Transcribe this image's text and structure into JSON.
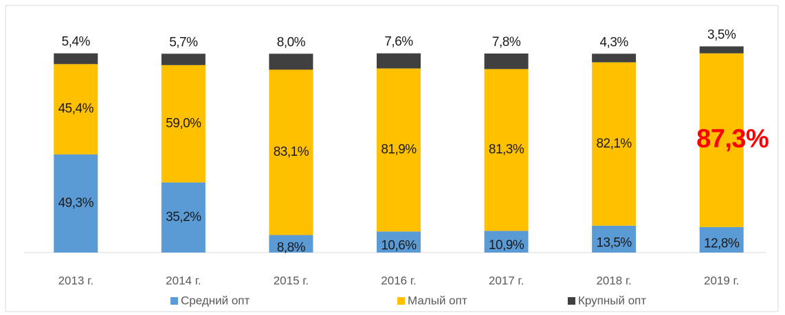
{
  "chart_data": {
    "type": "stacked_bar",
    "categories": [
      "2013 г.",
      "2014 г.",
      "2015 г.",
      "2016 г.",
      "2017 г.",
      "2018 г.",
      "2019 г."
    ],
    "series": [
      {
        "name": "Средний опт",
        "color": "#5b9bd5",
        "values": [
          49.3,
          35.2,
          8.8,
          10.6,
          10.9,
          13.5,
          12.8
        ],
        "value_labels": [
          "49,3%",
          "35,2%",
          "8,8%",
          "10,6%",
          "10,9%",
          "13,5%",
          "12,8%"
        ]
      },
      {
        "name": "Малый опт",
        "color": "#ffc000",
        "values": [
          45.4,
          59.0,
          83.1,
          81.9,
          81.3,
          82.1,
          87.3
        ],
        "value_labels": [
          "45,4%",
          "59,0%",
          "83,1%",
          "81,9%",
          "81,3%",
          "82,1%",
          "87,3%"
        ],
        "highlight_index": 6,
        "highlight_color": "#ff0000"
      },
      {
        "name": "Крупный опт",
        "color": "#404040",
        "values": [
          5.4,
          5.7,
          8.0,
          7.6,
          7.8,
          4.3,
          3.5
        ],
        "value_labels": [
          "5,4%",
          "5,7%",
          "8,0%",
          "7,6%",
          "7,8%",
          "4,3%",
          "3,5%"
        ]
      }
    ]
  }
}
